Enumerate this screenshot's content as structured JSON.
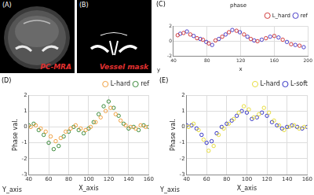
{
  "images": [
    {
      "panel_label": "(A)",
      "caption": "PC-MRA"
    },
    {
      "panel_label": "(B)",
      "caption": "Vessel mask"
    }
  ],
  "chart_data": [
    {
      "type": "scatter",
      "panel_label": "(C)",
      "title": "phase",
      "xlabel": "x",
      "depth_label": "y",
      "xlim": [
        40,
        200
      ],
      "xticks": [
        40,
        80,
        120,
        160,
        200
      ],
      "ylim": [
        -2,
        2
      ],
      "yticks": [
        -2,
        0,
        2
      ],
      "grid": true,
      "legend": "top-right",
      "series": [
        {
          "name": "L_hard",
          "color": "#d03a3a",
          "marker": "circle",
          "x": [
            45,
            52,
            60,
            68,
            75,
            82,
            90,
            98,
            106,
            115,
            124,
            132,
            140,
            150,
            160,
            170,
            180,
            190
          ],
          "values": [
            0.8,
            1.1,
            0.9,
            0.4,
            0.2,
            -0.3,
            0.1,
            0.6,
            1.2,
            1.4,
            0.9,
            0.3,
            0.0,
            0.4,
            0.7,
            0.2,
            -0.4,
            -0.6
          ]
        },
        {
          "name": "ref",
          "color": "#4a3ec8",
          "marker": "circle",
          "x": [
            48,
            56,
            64,
            72,
            79,
            86,
            94,
            102,
            110,
            119,
            128,
            136,
            145,
            155,
            165,
            175,
            185,
            195
          ],
          "values": [
            1.0,
            1.3,
            0.7,
            0.3,
            -0.1,
            -0.5,
            0.3,
            0.9,
            1.5,
            1.2,
            0.6,
            0.1,
            0.2,
            0.6,
            0.5,
            -0.1,
            -0.5,
            -0.8
          ]
        }
      ]
    },
    {
      "type": "scatter",
      "panel_label": "(D)",
      "xlabel": "X_axis",
      "ylabel": "Phase val.",
      "depth_label": "Y_axis",
      "xlim": [
        40,
        160
      ],
      "xticks": [
        40,
        60,
        80,
        100,
        120,
        140,
        160
      ],
      "ylim": [
        -3,
        2
      ],
      "yticks": [
        -3,
        -2,
        -1,
        0,
        1,
        2
      ],
      "grid": true,
      "legend": "top-right",
      "series": [
        {
          "name": "L-hard",
          "color": "#f0a040",
          "marker": "circle",
          "x": [
            42,
            47,
            52,
            57,
            62,
            67,
            72,
            77,
            82,
            87,
            92,
            97,
            102,
            107,
            112,
            117,
            122,
            127,
            132,
            137,
            142,
            147,
            152,
            157
          ],
          "values": [
            0.0,
            0.1,
            -0.1,
            -0.3,
            -0.6,
            -0.9,
            -0.7,
            -0.3,
            -0.1,
            0.1,
            -0.1,
            -0.2,
            0.0,
            0.3,
            0.6,
            1.0,
            1.2,
            0.8,
            0.4,
            0.1,
            0.0,
            -0.1,
            0.1,
            0.0
          ]
        },
        {
          "name": "ref",
          "color": "#3a8a3a",
          "marker": "circle",
          "x": [
            40,
            45,
            50,
            55,
            60,
            65,
            70,
            75,
            80,
            85,
            90,
            95,
            100,
            105,
            110,
            115,
            120,
            125,
            130,
            135,
            140,
            145,
            150,
            155,
            160
          ],
          "values": [
            0.1,
            0.2,
            -0.2,
            -0.5,
            -1.0,
            -1.4,
            -1.2,
            -0.6,
            -0.3,
            0.0,
            -0.2,
            -0.4,
            -0.1,
            0.3,
            0.8,
            1.3,
            1.6,
            1.2,
            0.7,
            0.2,
            -0.1,
            0.0,
            -0.2,
            0.1,
            0.0
          ]
        }
      ]
    },
    {
      "type": "scatter",
      "panel_label": "(E)",
      "xlabel": "X_axis",
      "ylabel": "Phase val.",
      "depth_label": "Y_axis",
      "xlim": [
        40,
        160
      ],
      "xticks": [
        40,
        60,
        80,
        100,
        120,
        140,
        160
      ],
      "ylim": [
        -3,
        2
      ],
      "yticks": [
        -3,
        -2,
        -1,
        0,
        1,
        2
      ],
      "grid": true,
      "legend": "top-right",
      "series": [
        {
          "name": "L-hard",
          "color": "#e6dc3c",
          "marker": "circle",
          "x": [
            42,
            47,
            52,
            57,
            62,
            67,
            72,
            77,
            82,
            87,
            92,
            97,
            102,
            107,
            112,
            117,
            122,
            127,
            132,
            137,
            142,
            147,
            152,
            157
          ],
          "values": [
            0.0,
            0.2,
            -0.2,
            -0.8,
            -1.5,
            -1.2,
            -0.5,
            -0.1,
            0.2,
            0.5,
            0.9,
            1.3,
            1.1,
            0.6,
            0.8,
            1.2,
            0.9,
            0.4,
            0.1,
            -0.2,
            0.0,
            0.1,
            -0.1,
            0.0
          ]
        },
        {
          "name": "L-soft",
          "color": "#3434c4",
          "marker": "circle",
          "x": [
            40,
            45,
            50,
            55,
            60,
            65,
            70,
            75,
            80,
            85,
            90,
            95,
            100,
            105,
            110,
            115,
            120,
            125,
            130,
            135,
            140,
            145,
            150,
            155,
            160
          ],
          "values": [
            0.1,
            0.1,
            -0.1,
            -0.5,
            -1.0,
            -0.9,
            -0.4,
            0.0,
            0.2,
            0.4,
            0.7,
            1.0,
            0.9,
            0.5,
            0.6,
            0.9,
            0.7,
            0.3,
            0.1,
            -0.1,
            0.0,
            0.1,
            0.0,
            -0.1,
            0.0
          ]
        }
      ]
    }
  ]
}
